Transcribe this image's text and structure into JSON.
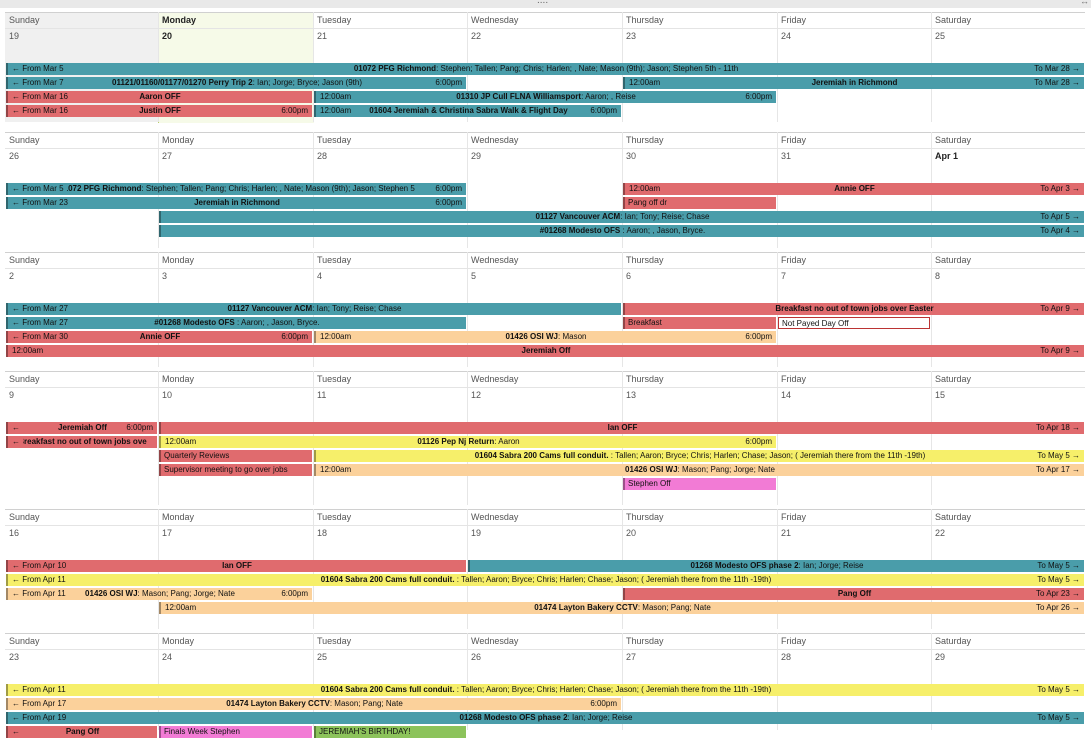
{
  "day_names": [
    "Sunday",
    "Monday",
    "Tuesday",
    "Wednesday",
    "Thursday",
    "Friday",
    "Saturday"
  ],
  "colors": {
    "teal": "#4a9daa",
    "red": "#e06b6e",
    "yellow": "#f6ef6a",
    "peach": "#fbd19b",
    "pink": "#f27bd5",
    "green": "#8cc35b",
    "today": "#f6fae8",
    "past": "#f0f0f0"
  },
  "weeks": [
    {
      "days": [
        "19",
        "20",
        "21",
        "22",
        "23",
        "24",
        "25"
      ],
      "events": [
        {
          "row": 0,
          "start": 0,
          "end": 7,
          "color": "teal",
          "prefix": "← From Mar 5",
          "title": "01072 PFG Richmond",
          "detail": "Stephen; Tallen; Pang; Chris; Harlen; , Nate; Mason (9th); Jason; Stephen 5th - 11th",
          "suffix": "To Mar 28 →"
        },
        {
          "row": 1,
          "start": 0,
          "end": 3,
          "color": "teal",
          "prefix": "← From Mar 7",
          "title": "01121/01160/01177/01270 Perry Trip 2",
          "detail": "Ian; Jorge; Bryce; Jason (9th)",
          "time": "6:00pm"
        },
        {
          "row": 1,
          "start": 4,
          "end": 7,
          "color": "teal",
          "time_start": "12:00am",
          "title": "Jeremiah in Richmond",
          "suffix": "To Mar 28 →"
        },
        {
          "row": 2,
          "start": 0,
          "end": 2,
          "color": "red",
          "prefix": "← From Mar 16",
          "title": "Aaron OFF"
        },
        {
          "row": 2,
          "start": 2,
          "end": 5,
          "color": "teal",
          "time_start": "12:00am",
          "title": "01310 JP Cull FLNA Williamsport",
          "detail": "Aaron; , Reise",
          "time": "6:00pm"
        },
        {
          "row": 3,
          "start": 0,
          "end": 2,
          "color": "red",
          "prefix": "← From Mar 16",
          "title": "Justin OFF",
          "time": "6:00pm"
        },
        {
          "row": 3,
          "start": 2,
          "end": 4,
          "color": "teal",
          "time_start": "12:00am",
          "title": "01604 Jeremiah & Christina Sabra Walk & Flight Day",
          "time": "6:00pm"
        }
      ]
    },
    {
      "days": [
        "26",
        "27",
        "28",
        "29",
        "30",
        "31",
        "Apr 1"
      ],
      "events": [
        {
          "row": 0,
          "start": 0,
          "end": 3,
          "color": "teal",
          "prefix": "← From Mar 5",
          "title": "01072 PFG Richmond",
          "detail": "Stephen; Tallen; Pang; Chris; Harlen; , Nate; Mason (9th); Jason; Stephen 5",
          "time": "6:00pm"
        },
        {
          "row": 0,
          "start": 4,
          "end": 7,
          "color": "red",
          "time_start": "12:00am",
          "title": "Annie OFF",
          "suffix": "To Apr 3 →"
        },
        {
          "row": 1,
          "start": 0,
          "end": 3,
          "color": "teal",
          "prefix": "← From Mar 23",
          "title": "Jeremiah in Richmond",
          "time": "6:00pm"
        },
        {
          "row": 1,
          "start": 4,
          "end": 5,
          "color": "red",
          "time_start": "Pang off dr"
        },
        {
          "row": 2,
          "start": 1,
          "end": 7,
          "color": "teal",
          "title": "01127 Vancouver ACM",
          "detail": "Ian; Tony; Reise; Chase",
          "suffix": "To Apr 5 →"
        },
        {
          "row": 3,
          "start": 1,
          "end": 7,
          "color": "teal",
          "title": "#01268 Modesto OFS ",
          "detail": "Aaron; , Jason, Bryce.",
          "suffix": "To Apr 4 →"
        }
      ]
    },
    {
      "days": [
        "2",
        "3",
        "4",
        "5",
        "6",
        "7",
        "8"
      ],
      "events": [
        {
          "row": 0,
          "start": 0,
          "end": 4,
          "color": "teal",
          "prefix": "← From Mar 27",
          "title": "01127 Vancouver ACM",
          "detail": "Ian; Tony; Reise; Chase"
        },
        {
          "row": 0,
          "start": 4,
          "end": 7,
          "color": "red",
          "title": "Breakfast no out of town jobs over Easter",
          "suffix": "To Apr 9 →"
        },
        {
          "row": 1,
          "start": 0,
          "end": 3,
          "color": "teal",
          "prefix": "← From Mar 27",
          "title": "#01268 Modesto OFS ",
          "detail": "Aaron; , Jason, Bryce."
        },
        {
          "row": 1,
          "start": 4,
          "end": 5,
          "color": "red",
          "time_start": "Breakfast"
        },
        {
          "row": 1,
          "start": 5,
          "end": 6,
          "color": "red",
          "box": true,
          "time_start": "Not Payed Day Off"
        },
        {
          "row": 2,
          "start": 0,
          "end": 2,
          "color": "red",
          "prefix": "← From Mar 30",
          "title": "Annie OFF",
          "time": "6:00pm"
        },
        {
          "row": 2,
          "start": 2,
          "end": 5,
          "color": "peach",
          "time_start": "12:00am",
          "title": "01426 OSI WJ",
          "detail": "Mason",
          "time": "6:00pm"
        },
        {
          "row": 3,
          "start": 0,
          "end": 7,
          "color": "red",
          "time_start": "12:00am",
          "title": "Jeremiah Off",
          "suffix": "To Apr 9 →"
        }
      ]
    },
    {
      "days": [
        "9",
        "10",
        "11",
        "12",
        "13",
        "14",
        "15"
      ],
      "events": [
        {
          "row": 0,
          "start": 0,
          "end": 1,
          "color": "red",
          "prefix": "←",
          "title": "Jeremiah Off",
          "time": "6:00pm"
        },
        {
          "row": 0,
          "start": 1,
          "end": 7,
          "color": "red",
          "title": "Ian OFF",
          "suffix": "To Apr 18 →"
        },
        {
          "row": 1,
          "start": 0,
          "end": 1,
          "color": "red",
          "prefix": "←",
          "title": "Breakfast no out of town jobs ove"
        },
        {
          "row": 1,
          "start": 1,
          "end": 5,
          "color": "yellow",
          "time_start": "12:00am",
          "title": "01126 Pep Nj Return",
          "detail": "Aaron",
          "time": "6:00pm"
        },
        {
          "row": 2,
          "start": 1,
          "end": 2,
          "color": "red",
          "time_start": "Quarterly Reviews"
        },
        {
          "row": 2,
          "start": 2,
          "end": 7,
          "color": "yellow",
          "title": "01604 Sabra 200 Cams full conduit. ",
          "detail": "Tallen; Aaron; Bryce; Chris; Harlen; Chase; Jason; ( Jeremiah there from the 11th -19th)",
          "suffix": "To May 5 →"
        },
        {
          "row": 3,
          "start": 1,
          "end": 2,
          "color": "red",
          "time_start": "Supervisor meeting to go over jobs"
        },
        {
          "row": 3,
          "start": 2,
          "end": 7,
          "color": "peach",
          "time_start": "12:00am",
          "title": "01426 OSI WJ",
          "detail": "Mason; Pang; Jorge; Nate",
          "suffix": "To Apr 17 →"
        },
        {
          "row": 4,
          "start": 4,
          "end": 5,
          "color": "pink",
          "time_start": "Stephen Off"
        }
      ]
    },
    {
      "days": [
        "16",
        "17",
        "18",
        "19",
        "20",
        "21",
        "22"
      ],
      "events": [
        {
          "row": 0,
          "start": 0,
          "end": 3,
          "color": "red",
          "prefix": "← From Apr 10",
          "title": "Ian OFF"
        },
        {
          "row": 0,
          "start": 3,
          "end": 7,
          "color": "teal",
          "title": "01268 Modesto OFS phase 2",
          "detail": "Ian; Jorge; Reise",
          "suffix": "To May 5 →"
        },
        {
          "row": 1,
          "start": 0,
          "end": 7,
          "color": "yellow",
          "prefix": "← From Apr 11",
          "title": "01604 Sabra 200 Cams full conduit. ",
          "detail": "Tallen; Aaron; Bryce; Chris; Harlen; Chase; Jason; ( Jeremiah there from the 11th -19th)",
          "suffix": "To May 5 →"
        },
        {
          "row": 2,
          "start": 0,
          "end": 2,
          "color": "peach",
          "prefix": "← From Apr 11",
          "title": "01426 OSI WJ",
          "detail": "Mason; Pang; Jorge; Nate",
          "time": "6:00pm"
        },
        {
          "row": 2,
          "start": 4,
          "end": 7,
          "color": "red",
          "title": "Pang Off",
          "suffix": "To Apr 23 →"
        },
        {
          "row": 3,
          "start": 1,
          "end": 7,
          "color": "peach",
          "time_start": "12:00am",
          "title": "01474 Layton Bakery CCTV",
          "detail": "Mason; Pang; Nate",
          "suffix": "To Apr 26 →"
        }
      ]
    },
    {
      "days": [
        "23",
        "24",
        "25",
        "26",
        "27",
        "28",
        "29"
      ],
      "events": [
        {
          "row": 0,
          "start": 0,
          "end": 7,
          "color": "yellow",
          "prefix": "← From Apr 11",
          "title": "01604 Sabra 200 Cams full conduit. ",
          "detail": "Tallen; Aaron; Bryce; Chris; Harlen; Chase; Jason; ( Jeremiah there from the 11th -19th)",
          "suffix": "To May 5 →"
        },
        {
          "row": 1,
          "start": 0,
          "end": 4,
          "color": "peach",
          "prefix": "← From Apr 17",
          "title": "01474 Layton Bakery CCTV",
          "detail": "Mason; Pang; Nate",
          "time": "6:00pm"
        },
        {
          "row": 2,
          "start": 0,
          "end": 7,
          "color": "teal",
          "prefix": "← From Apr 19",
          "title": "01268 Modesto OFS phase 2",
          "detail": "Ian; Jorge; Reise",
          "suffix": "To May 5 →"
        },
        {
          "row": 3,
          "start": 0,
          "end": 1,
          "color": "red",
          "prefix": "←",
          "title": "Pang Off"
        },
        {
          "row": 3,
          "start": 1,
          "end": 2,
          "color": "pink",
          "time_start": "Finals Week Stephen"
        },
        {
          "row": 3,
          "start": 2,
          "end": 3,
          "color": "green",
          "time_start": "JEREMIAH'S BIRTHDAY!"
        }
      ]
    }
  ]
}
